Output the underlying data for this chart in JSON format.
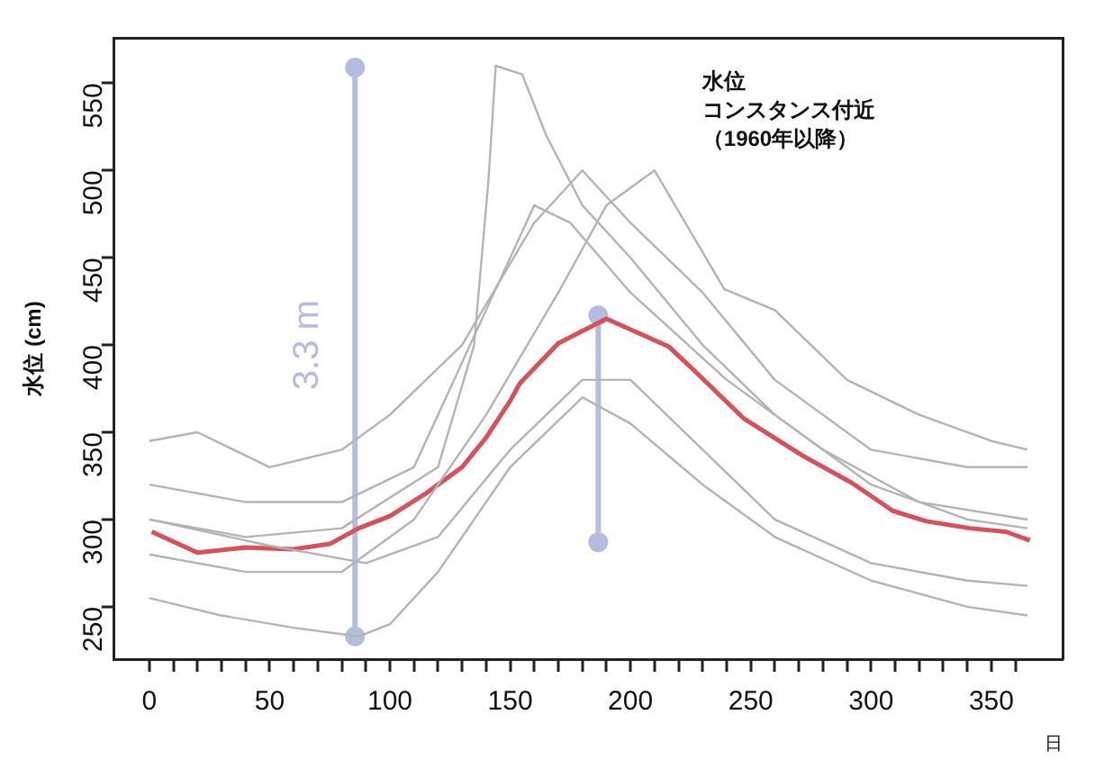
{
  "chart_data": {
    "type": "line",
    "title": "水位",
    "subtitle": "コンスタンス付近",
    "ylabel": "水位 (cm)",
    "xlabel": "日",
    "xlim": [
      -14.6,
      379.6
    ],
    "ylim": [
      220,
      576
    ],
    "xticks": [
      0,
      {
        "value": 10,
        "label": null
      },
      {
        "value": 20,
        "label": null
      },
      {
        "value": 30,
        "label": null
      },
      {
        "value": 40,
        "label": null
      },
      50,
      {
        "value": 60,
        "label": null
      },
      {
        "value": 70,
        "label": null
      },
      {
        "value": 80,
        "label": null
      },
      {
        "value": 90,
        "label": null
      },
      100,
      {
        "value": 110,
        "label": null
      },
      {
        "value": 120,
        "label": null
      },
      {
        "value": 130,
        "label": null
      },
      {
        "value": 140,
        "label": null
      },
      150,
      {
        "value": 160,
        "label": null
      },
      {
        "value": 170,
        "label": null
      },
      {
        "value": 180,
        "label": null
      },
      {
        "value": 190,
        "label": null
      },
      200,
      {
        "value": 210,
        "label": null
      },
      {
        "value": 220,
        "label": null
      },
      {
        "value": 230,
        "label": null
      },
      {
        "value": 240,
        "label": null
      },
      250,
      {
        "value": 260,
        "label": null
      },
      {
        "value": 270,
        "label": null
      },
      {
        "value": 280,
        "label": null
      },
      {
        "value": 290,
        "label": null
      },
      300,
      {
        "value": 310,
        "label": null
      },
      {
        "value": 320,
        "label": null
      },
      {
        "value": 330,
        "label": null
      },
      {
        "value": 340,
        "label": null
      },
      350,
      {
        "value": 360,
        "label": null
      }
    ],
    "yticks": [
      250,
      300,
      350,
      400,
      450,
      500,
      550
    ],
    "grid": false,
    "legend": false,
    "marker": "none",
    "line_style": "solid",
    "annotations": [
      "（1960年以降）",
      {
        "text": "3.3 m",
        "x": 85.5,
        "y": 400
      }
    ],
    "series": [
      {
        "color": "#b4b4b4",
        "x": [
          0,
          40,
          80,
          120,
          135,
          141,
          144,
          155,
          165,
          180,
          200,
          230,
          260,
          300,
          340,
          365
        ],
        "values": [
          300,
          290,
          295,
          330,
          400,
          495,
          560,
          555,
          520,
          480,
          450,
          400,
          360,
          320,
          300,
          295
        ]
      },
      {
        "color": "#b4b4b4",
        "x": [
          0,
          30,
          60,
          87,
          100,
          120,
          150,
          180,
          200,
          230,
          260,
          300,
          340,
          365
        ],
        "values": [
          255,
          245,
          238,
          233,
          240,
          270,
          330,
          370,
          355,
          320,
          290,
          265,
          250,
          245
        ]
      },
      {
        "color": "#b4b4b4",
        "x": [
          0,
          20,
          50,
          80,
          100,
          130,
          160,
          180,
          200,
          230,
          260,
          300,
          340,
          365
        ],
        "values": [
          345,
          350,
          330,
          340,
          360,
          400,
          470,
          500,
          470,
          430,
          380,
          340,
          330,
          330
        ]
      },
      {
        "color": "#b4b4b4",
        "x": [
          0,
          40,
          80,
          110,
          140,
          170,
          190,
          210,
          239,
          260,
          290,
          320,
          350,
          365
        ],
        "values": [
          280,
          270,
          270,
          300,
          360,
          430,
          480,
          500,
          432,
          420,
          380,
          360,
          345,
          340
        ]
      },
      {
        "color": "#b4b4b4",
        "x": [
          0,
          50,
          90,
          120,
          150,
          180,
          200,
          230,
          260,
          300,
          340,
          365
        ],
        "values": [
          300,
          285,
          275,
          290,
          340,
          380,
          380,
          340,
          300,
          275,
          265,
          262
        ]
      },
      {
        "color": "#b4b4b4",
        "x": [
          0,
          40,
          80,
          110,
          140,
          160,
          175,
          200,
          240,
          280,
          320,
          365
        ],
        "values": [
          320,
          310,
          310,
          330,
          420,
          480,
          470,
          430,
          380,
          340,
          310,
          300
        ]
      },
      {
        "color": "#d9505a",
        "x": [
          1,
          20,
          40,
          60,
          75,
          87,
          100,
          115,
          130,
          140,
          150,
          154,
          170,
          190,
          216,
          226,
          232,
          247,
          271,
          292,
          309,
          323,
          341,
          356,
          366
        ],
        "values": [
          293,
          281,
          284,
          283,
          286,
          295,
          302,
          315,
          330,
          347,
          368,
          378,
          401,
          415,
          399,
          386,
          378,
          358,
          337,
          321,
          305,
          299,
          295,
          293,
          288
        ]
      },
      {
        "color": "#b4bce0",
        "marker": "circle",
        "x": [
          85.5,
          85.5
        ],
        "values": [
          233,
          559
        ]
      },
      {
        "color": "#b4bce0",
        "marker": "circle",
        "x": [
          186.6,
          186.6
        ],
        "values": [
          287,
          417
        ]
      }
    ]
  }
}
